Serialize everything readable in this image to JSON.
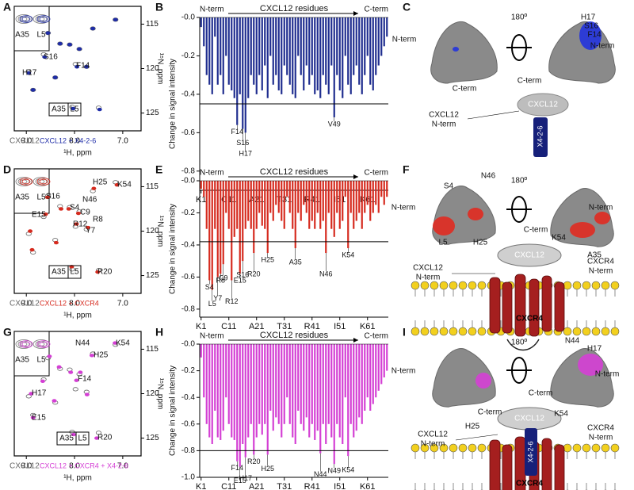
{
  "panel_labels": [
    "A",
    "B",
    "C",
    "D",
    "E",
    "F",
    "G",
    "H",
    "I"
  ],
  "chart_data": [
    {
      "type": "scatter",
      "xlabel": "¹H, ppm",
      "ylabel": "¹⁵N, ppm",
      "xlim": [
        9.25,
        6.62
      ],
      "ylim": [
        113,
        127
      ],
      "xticks": [
        {
          "value": 9,
          "label": "9.0"
        },
        {
          "value": 8,
          "label": "8.0"
        },
        {
          "value": 7,
          "label": "7.0"
        }
      ],
      "yticks": [
        115,
        120,
        125
      ],
      "series": [
        {
          "name": "CXCL12",
          "color": "#666666",
          "x": [
            8.95,
            8.86,
            8.64,
            8.55,
            8.3,
            8.1,
            7.98,
            7.9,
            7.75,
            7.62,
            7.5,
            7.15,
            8.4,
            8.05
          ],
          "values": [
            120.3,
            122.4,
            118.4,
            116.0,
            117.2,
            117.3,
            119.5,
            117.8,
            119.8,
            115.5,
            124.4,
            114.5,
            121.0,
            124.3
          ]
        },
        {
          "name": "CXCL12 + X4-2-6",
          "color": "#1f2da8",
          "x": [
            8.95,
            8.86,
            8.62,
            8.55,
            8.3,
            8.1,
            7.95,
            7.9,
            7.75,
            7.62,
            7.48,
            7.15,
            8.4,
            8.03
          ],
          "values": [
            120.5,
            122.4,
            118.7,
            116.0,
            117.2,
            117.3,
            119.8,
            117.8,
            119.8,
            115.5,
            124.6,
            114.5,
            121.0,
            124.5
          ]
        }
      ],
      "peak_labels": [
        "S16",
        "H17",
        "F14"
      ],
      "inset_labels": [
        "A35",
        "L5"
      ],
      "boxed_labels": [
        "A35",
        "L5"
      ]
    },
    {
      "type": "bar",
      "title": "CXCL12 residues",
      "start_label": "N-term",
      "end_label": "C-term",
      "ylabel": "Change in signal intensity",
      "color": "#1f2d8f",
      "xlim": [
        0.5,
        68.5
      ],
      "xticks": [
        {
          "value": 1,
          "label": "K1"
        },
        {
          "value": 11,
          "label": "C11"
        },
        {
          "value": 21,
          "label": "A21"
        },
        {
          "value": 31,
          "label": "T31"
        },
        {
          "value": 41,
          "label": "R41"
        },
        {
          "value": 51,
          "label": "I51"
        },
        {
          "value": 61,
          "label": "K61"
        }
      ],
      "ylim": [
        -0.9,
        0
      ],
      "yticks": [
        {
          "value": 0,
          "label": "-0.0"
        },
        -0.2,
        -0.4,
        -0.6,
        -0.8
      ],
      "threshold": -0.45,
      "x": [
        1,
        2,
        3,
        4,
        5,
        6,
        7,
        8,
        9,
        10,
        11,
        12,
        13,
        14,
        15,
        16,
        17,
        18,
        19,
        20,
        21,
        22,
        23,
        24,
        25,
        26,
        27,
        28,
        29,
        30,
        31,
        32,
        33,
        34,
        35,
        36,
        37,
        38,
        39,
        40,
        41,
        42,
        43,
        44,
        45,
        46,
        47,
        48,
        49,
        50,
        51,
        52,
        53,
        54,
        55,
        56,
        57,
        58,
        59,
        60,
        61,
        62,
        63,
        64,
        65,
        66,
        67,
        68
      ],
      "values": [
        -0.05,
        -0.15,
        -0.3,
        -0.35,
        -0.4,
        -0.1,
        -0.35,
        -0.3,
        -0.4,
        -0.2,
        -0.35,
        -0.38,
        -0.42,
        -0.56,
        -0.4,
        -0.58,
        -0.6,
        -0.42,
        -0.3,
        -0.35,
        -0.4,
        -0.3,
        -0.38,
        -0.25,
        -0.42,
        -0.2,
        -0.35,
        -0.3,
        -0.38,
        -0.4,
        -0.25,
        -0.3,
        -0.35,
        -0.4,
        -0.42,
        -0.2,
        -0.3,
        -0.38,
        -0.25,
        -0.35,
        -0.3,
        -0.4,
        -0.38,
        -0.42,
        -0.3,
        -0.35,
        -0.4,
        -0.25,
        -0.52,
        -0.3,
        -0.38,
        -0.42,
        -0.2,
        -0.35,
        -0.4,
        -0.3,
        -0.25,
        -0.35,
        -0.4,
        -0.3,
        -0.2,
        -0.35,
        -0.38,
        -0.3,
        -0.25,
        -0.2,
        -0.15,
        -0.1
      ],
      "annotations": [
        {
          "text": "F14",
          "x": 14
        },
        {
          "text": "S16",
          "x": 16
        },
        {
          "text": "H17",
          "x": 17
        },
        {
          "text": "V49",
          "x": 49
        }
      ]
    },
    {
      "type": "scatter",
      "xlabel": "¹H, ppm",
      "ylabel": "¹⁵N, ppm",
      "xlim": [
        9.25,
        6.62
      ],
      "ylim": [
        113,
        127
      ],
      "xticks": [
        {
          "value": 9,
          "label": "9.0"
        },
        {
          "value": 8,
          "label": "8.0"
        },
        {
          "value": 7,
          "label": "7.0"
        }
      ],
      "yticks": [
        115,
        120,
        125
      ],
      "series": [
        {
          "name": "CXCL12",
          "color": "#666666",
          "x": [
            8.95,
            8.86,
            8.64,
            8.55,
            8.3,
            8.1,
            7.98,
            7.9,
            7.75,
            7.62,
            7.5,
            7.15,
            8.4,
            8.05
          ],
          "values": [
            120.3,
            122.4,
            118.4,
            116.0,
            117.2,
            117.3,
            119.5,
            117.8,
            119.8,
            115.5,
            124.4,
            114.5,
            121.0,
            124.3
          ]
        },
        {
          "name": "CXCL12 + CXCR4",
          "color": "#d62a1e",
          "x": [
            8.92,
            8.88,
            8.6,
            8.56,
            8.28,
            8.12,
            7.96,
            7.92,
            7.72,
            7.6,
            7.52,
            7.12,
            8.38,
            8.06
          ],
          "values": [
            120.0,
            122.1,
            118.1,
            116.2,
            117.5,
            117.5,
            119.2,
            118.0,
            119.6,
            115.2,
            124.6,
            114.8,
            121.3,
            124.0
          ]
        }
      ],
      "peak_labels": [
        "H25",
        "K54",
        "N46",
        "S16",
        "S4",
        "C9",
        "R8",
        "E15",
        "R12",
        "Y7",
        "R20"
      ],
      "inset_labels": [
        "A35",
        "L5"
      ],
      "boxed_labels": [
        "A35",
        "L5"
      ]
    },
    {
      "type": "bar",
      "title": "CXCL12 residues",
      "start_label": "N-term",
      "end_label": "C-term",
      "ylabel": "Change in signal intensity",
      "color": "#d62a1e",
      "xlim": [
        0.5,
        68.5
      ],
      "xticks": [
        {
          "value": 1,
          "label": "K1"
        },
        {
          "value": 11,
          "label": "C11"
        },
        {
          "value": 21,
          "label": "A21"
        },
        {
          "value": 31,
          "label": "T31"
        },
        {
          "value": 41,
          "label": "R41"
        },
        {
          "value": 51,
          "label": "I51"
        },
        {
          "value": 61,
          "label": "K61"
        }
      ],
      "ylim": [
        -0.85,
        0
      ],
      "yticks": [
        {
          "value": 0,
          "label": "-0.0"
        },
        -0.2,
        -0.4,
        -0.6,
        -0.8
      ],
      "threshold": -0.38,
      "x": [
        1,
        2,
        3,
        4,
        5,
        6,
        7,
        8,
        9,
        10,
        11,
        12,
        13,
        14,
        15,
        16,
        17,
        18,
        19,
        20,
        21,
        22,
        23,
        24,
        25,
        26,
        27,
        28,
        29,
        30,
        31,
        32,
        33,
        34,
        35,
        36,
        37,
        38,
        39,
        40,
        41,
        42,
        43,
        44,
        45,
        46,
        47,
        48,
        49,
        50,
        51,
        52,
        53,
        54,
        55,
        56,
        57,
        58,
        59,
        60,
        61,
        62,
        63,
        64,
        65,
        66,
        67,
        68
      ],
      "values": [
        -0.05,
        -0.1,
        -0.3,
        -0.62,
        -0.68,
        -0.3,
        -0.6,
        -0.58,
        -0.52,
        -0.2,
        -0.3,
        -0.62,
        -0.35,
        -0.3,
        -0.58,
        -0.5,
        -0.3,
        -0.25,
        -0.3,
        -0.45,
        -0.3,
        -0.2,
        -0.28,
        -0.3,
        -0.45,
        -0.2,
        -0.25,
        -0.15,
        -0.2,
        -0.25,
        -0.3,
        -0.1,
        -0.2,
        -0.3,
        -0.42,
        -0.2,
        -0.25,
        -0.15,
        -0.2,
        -0.3,
        -0.25,
        -0.3,
        -0.2,
        -0.3,
        -0.25,
        -0.45,
        -0.2,
        -0.3,
        -0.35,
        -0.2,
        -0.3,
        -0.25,
        -0.1,
        -0.42,
        -0.2,
        -0.3,
        -0.25,
        -0.2,
        -0.3,
        -0.2,
        -0.15,
        -0.25,
        -0.2,
        -0.15,
        -0.2,
        -0.1,
        -0.15,
        -0.1
      ],
      "annotations": [
        {
          "text": "S4",
          "x": 4
        },
        {
          "text": "L5",
          "x": 5
        },
        {
          "text": "Y7",
          "x": 7
        },
        {
          "text": "R8",
          "x": 8
        },
        {
          "text": "C9",
          "x": 9
        },
        {
          "text": "R12",
          "x": 12
        },
        {
          "text": "E15",
          "x": 15
        },
        {
          "text": "S16",
          "x": 16
        },
        {
          "text": "R20",
          "x": 20
        },
        {
          "text": "H25",
          "x": 25
        },
        {
          "text": "A35",
          "x": 35
        },
        {
          "text": "N46",
          "x": 46
        },
        {
          "text": "K54",
          "x": 54
        }
      ]
    },
    {
      "type": "scatter",
      "xlabel": "¹H, ppm",
      "ylabel": "¹⁵N, ppm",
      "xlim": [
        9.25,
        6.62
      ],
      "ylim": [
        113,
        127
      ],
      "xticks": [
        {
          "value": 9,
          "label": "9.0"
        },
        {
          "value": 8,
          "label": "8.0"
        },
        {
          "value": 7,
          "label": "7.0"
        }
      ],
      "yticks": [
        115,
        120,
        125
      ],
      "series": [
        {
          "name": "CXCL12",
          "color": "#666666",
          "x": [
            8.95,
            8.86,
            8.64,
            8.55,
            8.3,
            8.1,
            7.98,
            7.9,
            7.75,
            7.62,
            7.5,
            7.15,
            8.4,
            8.05
          ],
          "values": [
            120.3,
            122.4,
            118.4,
            116.0,
            117.2,
            117.3,
            119.5,
            117.8,
            119.8,
            115.5,
            124.4,
            114.5,
            121.0,
            124.3
          ]
        },
        {
          "name": "CXCL12 + CXCR4 + X4-2-6",
          "color": "#d43fd4",
          "x": [
            8.9,
            8.86,
            8.66,
            8.52,
            8.32,
            8.08,
            7.96,
            7.88,
            7.74,
            7.64,
            7.54,
            7.16,
            8.42,
            8.02
          ],
          "values": [
            120.0,
            122.7,
            118.6,
            115.8,
            117.0,
            117.6,
            118.5,
            117.6,
            120.1,
            115.7,
            125.0,
            114.3,
            120.8,
            124.6
          ]
        }
      ],
      "peak_labels": [
        "N44",
        "K54",
        "H25",
        "F14",
        "H17",
        "E15",
        "R20"
      ],
      "inset_labels": [
        "A35",
        "L5"
      ],
      "boxed_labels": [
        "A35",
        "L5"
      ]
    },
    {
      "type": "bar",
      "title": "CXCL12 residues",
      "start_label": "N-term",
      "end_label": "C-term",
      "ylabel": "Change in signal intensity",
      "color": "#d43fd4",
      "xlim": [
        0.5,
        68.5
      ],
      "xticks": [
        {
          "value": 1,
          "label": "K1"
        },
        {
          "value": 11,
          "label": "C11"
        },
        {
          "value": 21,
          "label": "A21"
        },
        {
          "value": 31,
          "label": "T31"
        },
        {
          "value": 41,
          "label": "R41"
        },
        {
          "value": 51,
          "label": "I51"
        },
        {
          "value": 61,
          "label": "K61"
        }
      ],
      "ylim": [
        -1,
        0
      ],
      "yticks": [
        {
          "value": 0,
          "label": "-0.0"
        },
        -0.2,
        -0.4,
        -0.6,
        -0.8,
        {
          "value": -1,
          "label": "-1.0"
        }
      ],
      "threshold": -0.8,
      "x": [
        1,
        2,
        3,
        4,
        5,
        6,
        7,
        8,
        9,
        10,
        11,
        12,
        13,
        14,
        15,
        16,
        17,
        18,
        19,
        20,
        21,
        22,
        23,
        24,
        25,
        26,
        27,
        28,
        29,
        30,
        31,
        32,
        33,
        34,
        35,
        36,
        37,
        38,
        39,
        40,
        41,
        42,
        43,
        44,
        45,
        46,
        47,
        48,
        49,
        50,
        51,
        52,
        53,
        54,
        55,
        56,
        57,
        58,
        59,
        60,
        61,
        62,
        63,
        64,
        65,
        66,
        67,
        68
      ],
      "values": [
        -0.1,
        -0.4,
        -0.6,
        -0.7,
        -0.75,
        -0.5,
        -0.7,
        -0.72,
        -0.65,
        -0.4,
        -0.6,
        -0.7,
        -0.72,
        -0.88,
        -0.92,
        -0.75,
        -0.85,
        -0.7,
        -0.6,
        -0.83,
        -0.7,
        -0.6,
        -0.68,
        -0.6,
        -0.83,
        -0.5,
        -0.65,
        -0.55,
        -0.6,
        -0.7,
        -0.6,
        -0.4,
        -0.6,
        -0.7,
        -0.75,
        -0.5,
        -0.6,
        -0.65,
        -0.55,
        -0.7,
        -0.6,
        -0.72,
        -0.65,
        -0.82,
        -0.6,
        -0.75,
        -0.6,
        -0.7,
        -0.9,
        -0.6,
        -0.7,
        -0.75,
        -0.4,
        -0.84,
        -0.6,
        -0.7,
        -0.65,
        -0.55,
        -0.6,
        -0.5,
        -0.4,
        -0.5,
        -0.45,
        -0.4,
        -0.35,
        -0.3,
        -0.25,
        -0.2
      ],
      "annotations": [
        {
          "text": "F14",
          "x": 14
        },
        {
          "text": "E15",
          "x": 15
        },
        {
          "text": "H17",
          "x": 17
        },
        {
          "text": "R20",
          "x": 20
        },
        {
          "text": "H25",
          "x": 25
        },
        {
          "text": "N44",
          "x": 44
        },
        {
          "text": "N49",
          "x": 49
        },
        {
          "text": "K54",
          "x": 54
        }
      ]
    }
  ],
  "illustrations": {
    "C": [
      "N-term",
      "C-term",
      "180º",
      "H17",
      "S16",
      "F14",
      "N-term",
      "C-term",
      "CXCL12",
      "CXCL12",
      "N-term",
      "X4-2-6"
    ],
    "F": [
      "S4",
      "N46",
      "N-term",
      "L5",
      "H25",
      "180º",
      "N-term",
      "K54",
      "A35",
      "C-term",
      "CXCL12",
      "CXCL12",
      "N-term",
      "CXCR4",
      "N-term",
      "CXCR4"
    ],
    "I": [
      "N-term",
      "H25",
      "C-term",
      "180º",
      "N44",
      "H17",
      "N-term",
      "K54",
      "C-term",
      "CXCL12",
      "CXCR4",
      "N-term",
      "CXCL12",
      "N-term",
      "X4-2-6",
      "CXCR4"
    ]
  }
}
